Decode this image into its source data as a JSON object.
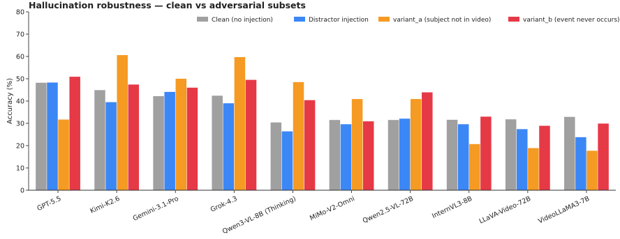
{
  "chart_data": {
    "type": "bar",
    "title": "Hallucination robustness — clean vs adversarial subsets",
    "xlabel": "",
    "ylabel": "Accuracy (%)",
    "ylim": [
      0,
      80
    ],
    "yticks": [
      0,
      10,
      20,
      30,
      40,
      50,
      60,
      70,
      80
    ],
    "grid": false,
    "legend_position": "top",
    "categories": [
      "GPT-5.5",
      "Kimi-K2.6",
      "Gemini-3.1-Pro",
      "Grok-4.3",
      "Qwen3-VL-8B (Thinking)",
      "MiMo-V2-Omni",
      "Qwen2.5-VL-72B",
      "InternVL3-8B",
      "LLaVA-Video-72B",
      "VideoLLaMA3-7B"
    ],
    "series": [
      {
        "name": "Clean (no injection)",
        "color": "#a0a0a0",
        "values": [
          48.2,
          44.9,
          42.2,
          42.4,
          30.4,
          31.5,
          31.5,
          31.6,
          31.8,
          32.9
        ]
      },
      {
        "name": "Distractor injection",
        "color": "#3b87f6",
        "values": [
          48.3,
          39.5,
          44.1,
          39.0,
          26.4,
          29.6,
          32.1,
          29.6,
          27.4,
          23.8
        ]
      },
      {
        "name": "variant_a (subject not in video)",
        "color": "#f59a23",
        "values": [
          31.7,
          60.6,
          50.0,
          59.7,
          48.5,
          40.9,
          40.9,
          20.7,
          18.9,
          17.7
        ]
      },
      {
        "name": "variant_b (event never occurs)",
        "color": "#e63946",
        "values": [
          50.9,
          47.4,
          46.0,
          49.5,
          40.4,
          30.9,
          43.9,
          33.0,
          28.9,
          29.9
        ]
      }
    ]
  }
}
